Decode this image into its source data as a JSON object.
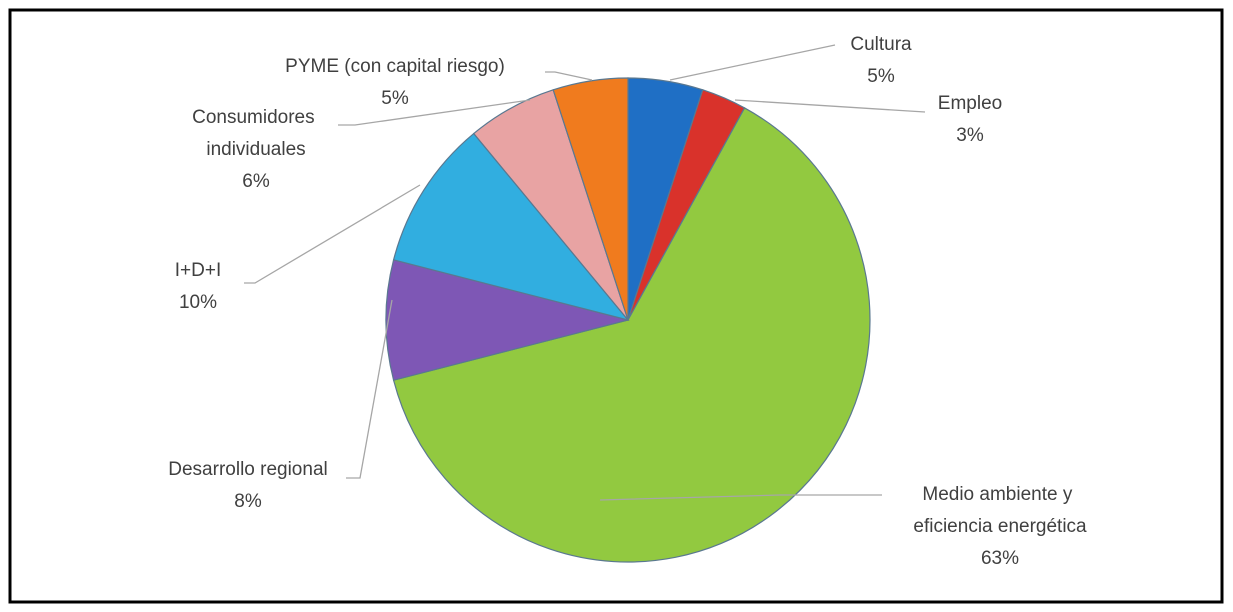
{
  "chart_data": {
    "type": "pie",
    "categories": [
      "Cultura",
      "Empleo",
      "Medio ambiente y eficiencia energética",
      "Desarrollo regional",
      "I+D+I",
      "Consumidores individuales",
      "PYME (con capital riesgo)"
    ],
    "values": [
      5,
      3,
      63,
      8,
      10,
      6,
      5
    ],
    "value_labels": [
      "5%",
      "3%",
      "63%",
      "8%",
      "10%",
      "6%",
      "5%"
    ],
    "colors": [
      "#1f6fc5",
      "#d9322b",
      "#92c940",
      "#7e57b5",
      "#31aee0",
      "#e8a3a3",
      "#f07b1e"
    ]
  }
}
